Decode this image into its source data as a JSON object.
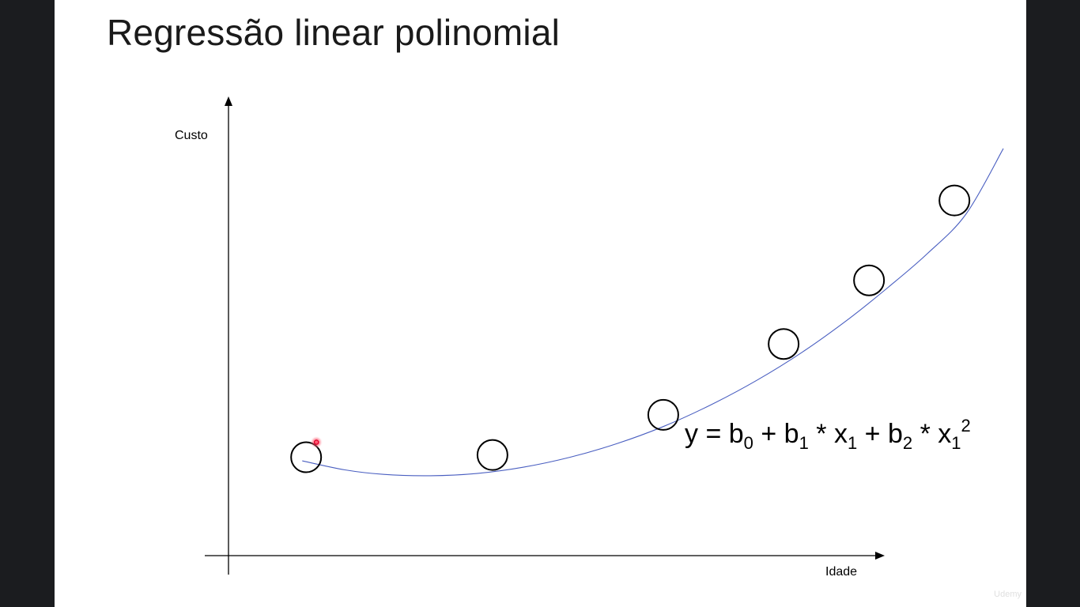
{
  "slide": {
    "title": "Regressão linear polinomial",
    "watermark": "Udemy"
  },
  "formula": {
    "y": "y",
    "eq": " = ",
    "b": "b",
    "sub0": "0",
    "plus": " + ",
    "sub1": "1",
    "times": " * ",
    "x": "x",
    "sub2": "2",
    "sup2": "2"
  },
  "chart_data": {
    "type": "scatter",
    "title": "",
    "xlabel": "Idade",
    "ylabel": "Custo",
    "xlim": [
      0,
      10
    ],
    "ylim": [
      0,
      10
    ],
    "grid": false,
    "legend": "none",
    "points": [
      {
        "x": 1.0,
        "y": 2.18
      },
      {
        "x": 3.4,
        "y": 2.23
      },
      {
        "x": 5.6,
        "y": 3.12
      },
      {
        "x": 7.15,
        "y": 4.69
      },
      {
        "x": 8.25,
        "y": 6.1
      },
      {
        "x": 9.35,
        "y": 7.87
      }
    ],
    "fit_curve": {
      "model": "polynomial degree 2",
      "x": [
        0.95,
        1.5,
        2.0,
        2.6,
        3.2,
        3.8,
        4.4,
        5.0,
        5.6,
        6.2,
        6.8,
        7.4,
        8.0,
        8.5,
        9.0,
        9.5,
        9.98
      ],
      "y": [
        2.1,
        1.9,
        1.8,
        1.77,
        1.82,
        1.96,
        2.18,
        2.48,
        2.86,
        3.33,
        3.88,
        4.52,
        5.26,
        5.95,
        6.69,
        7.57,
        9.02
      ]
    },
    "colors": {
      "curve": "#4a5fc1",
      "points": "#000000",
      "axes": "#000000"
    },
    "cursor_color": "#e0002a"
  }
}
